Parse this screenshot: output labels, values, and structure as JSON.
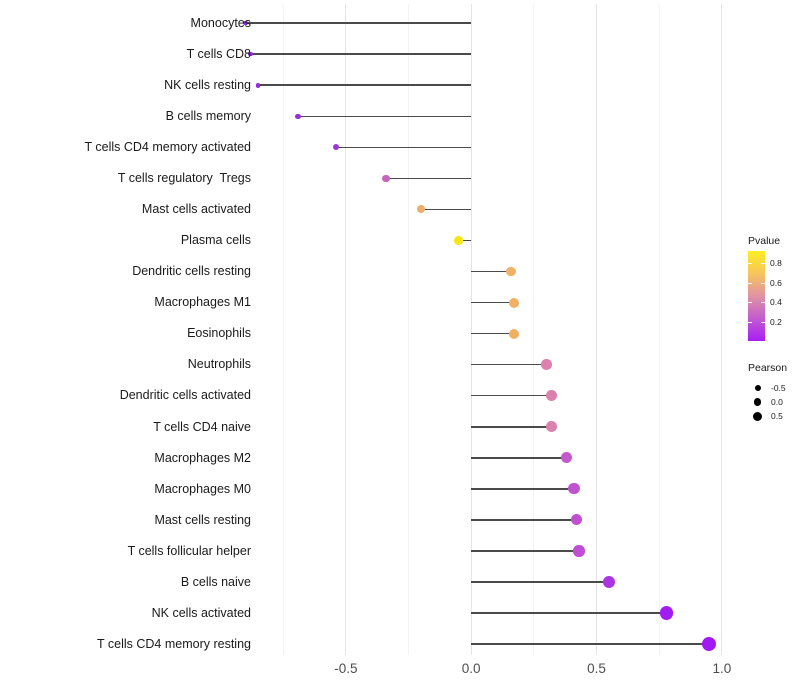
{
  "chart_data": {
    "type": "scatter",
    "variant": "horizontal-lollipop",
    "title": "",
    "xlabel": "",
    "ylabel": "",
    "x_tick_labels": [
      "-0.5",
      "0.0",
      "0.5",
      "1.0"
    ],
    "x_tick_values": [
      -0.5,
      0.0,
      0.5,
      1.0
    ],
    "x_minor_tick_values": [
      -0.75,
      -0.25,
      0.25,
      0.75
    ],
    "xlim": [
      -1.0,
      1.09
    ],
    "grid": true,
    "legend_position": "right",
    "categories": [
      "Monocytes",
      "T cells CD8",
      "NK cells resting",
      "B cells memory",
      "T cells CD4 memory activated",
      "T cells regulatory  Tregs",
      "Mast cells activated",
      "Plasma cells",
      "Dendritic cells resting",
      "Macrophages M1",
      "Eosinophils",
      "Neutrophils",
      "Dendritic cells activated",
      "T cells CD4 naive",
      "Macrophages M2",
      "Macrophages M0",
      "Mast cells resting",
      "T cells follicular helper",
      "B cells naive",
      "NK cells activated",
      "T cells CD4 memory resting"
    ],
    "series": [
      {
        "name": "Pearson",
        "values": [
          -0.9,
          -0.88,
          -0.85,
          -0.69,
          -0.54,
          -0.34,
          -0.2,
          -0.05,
          0.16,
          0.17,
          0.17,
          0.3,
          0.32,
          0.32,
          0.38,
          0.41,
          0.42,
          0.43,
          0.55,
          0.78,
          0.95
        ]
      },
      {
        "name": "Pvalue (estimated from color scale)",
        "values": [
          0.1,
          0.1,
          0.1,
          0.12,
          0.15,
          0.32,
          0.55,
          0.85,
          0.58,
          0.58,
          0.58,
          0.38,
          0.38,
          0.38,
          0.22,
          0.2,
          0.19,
          0.18,
          0.1,
          0.04,
          0.01
        ]
      }
    ],
    "point_colors": [
      "#8E2BE0",
      "#8E2BE0",
      "#902BDF",
      "#9530DC",
      "#9C36DB",
      "#C765BC",
      "#EFAE6E",
      "#F8E70E",
      "#F0B266",
      "#F0B164",
      "#F0B164",
      "#DC82AC",
      "#DB81AD",
      "#DB81AD",
      "#C558CB",
      "#C152CF",
      "#C050D0",
      "#BF4ED2",
      "#AC35E3",
      "#A21DF0",
      "#A01BF2"
    ]
  },
  "legend_pvalue": {
    "title": "Pvalue",
    "tick_labels": [
      "0.8",
      "0.6",
      "0.4",
      "0.2"
    ],
    "gradient_stops": [
      "#FCEE21",
      "#F6C55C",
      "#E093A2",
      "#C25BD0",
      "#A81EF5"
    ]
  },
  "legend_pearson": {
    "title": "Pearson",
    "items": [
      {
        "label": "-0.5",
        "diameter": 6.0
      },
      {
        "label": "0.0",
        "diameter": 7.6
      },
      {
        "label": "0.5",
        "diameter": 9.2
      }
    ]
  },
  "colors": {
    "background": "#FFFFFF",
    "stem": "#4A4A4A",
    "grid_major": "#E4E4E4",
    "grid_minor": "#F3F3F3",
    "axis_text": "#4D4D4D",
    "category_text": "#1A1A1A",
    "legend_dot": "#000000"
  }
}
